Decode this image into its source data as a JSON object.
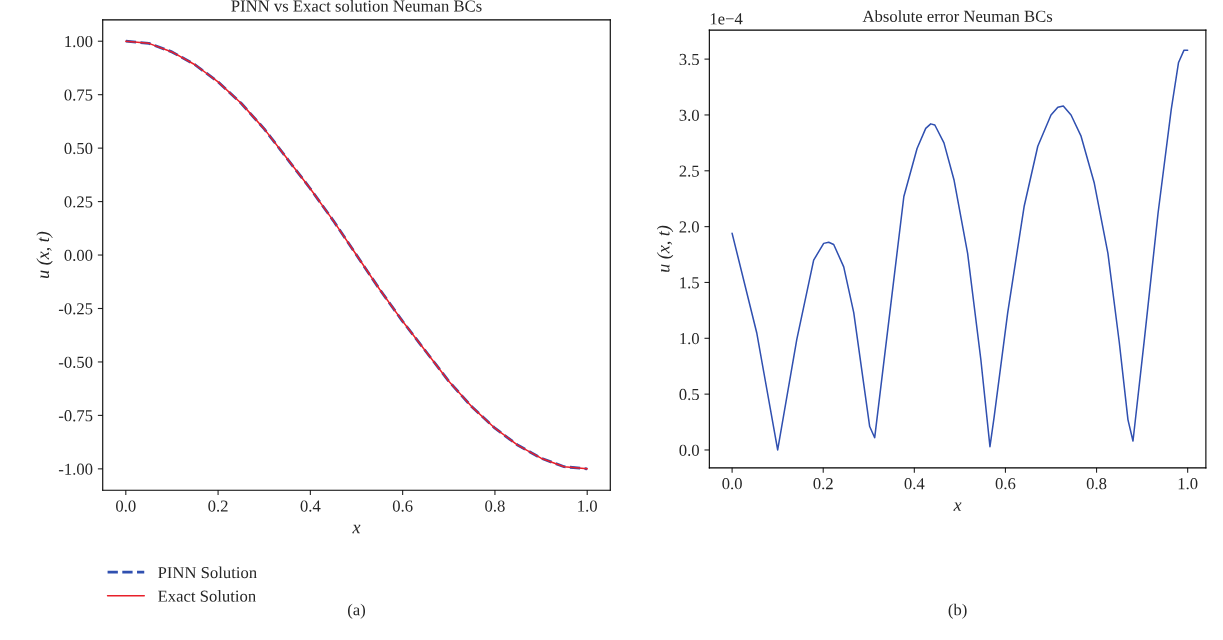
{
  "chart_data": [
    {
      "type": "line",
      "title": "PINN vs Exact solution Neuman BCs",
      "xlabel": "x",
      "ylabel": "u (x, t)",
      "annotations": [
        "(a)"
      ],
      "xlim": [
        -0.05,
        1.05
      ],
      "ylim": [
        -1.1,
        1.1
      ],
      "xticks": [
        {
          "value": 0,
          "label": "0.0"
        },
        {
          "value": 0.2,
          "label": "0.2"
        },
        {
          "value": 0.4,
          "label": "0.4"
        },
        {
          "value": 0.6,
          "label": "0.6"
        },
        {
          "value": 0.8,
          "label": "0.8"
        },
        {
          "value": 1,
          "label": "1.0"
        }
      ],
      "yticks": [
        {
          "value": -1,
          "label": "-1.00"
        },
        {
          "value": -0.75,
          "label": "-0.75"
        },
        {
          "value": -0.5,
          "label": "-0.50"
        },
        {
          "value": -0.25,
          "label": "-0.25"
        },
        {
          "value": 0,
          "label": "0.00"
        },
        {
          "value": 0.25,
          "label": "0.25"
        },
        {
          "value": 0.5,
          "label": "0.50"
        },
        {
          "value": 0.75,
          "label": "0.75"
        },
        {
          "value": 1,
          "label": "1.00"
        }
      ],
      "grid": false,
      "legend": "bottom left",
      "x": [
        0,
        0.05,
        0.1,
        0.15,
        0.2,
        0.25,
        0.3,
        0.35,
        0.4,
        0.45,
        0.5,
        0.55,
        0.6,
        0.65,
        0.7,
        0.75,
        0.8,
        0.85,
        0.9,
        0.95,
        1.0
      ],
      "series": [
        {
          "name": "PINN Solution",
          "color": "#3050b0",
          "line_style": "dashed",
          "values": [
            1.0,
            0.99,
            0.95,
            0.89,
            0.81,
            0.71,
            0.59,
            0.45,
            0.31,
            0.16,
            0.0,
            -0.16,
            -0.31,
            -0.45,
            -0.59,
            -0.71,
            -0.81,
            -0.89,
            -0.95,
            -0.99,
            -1.0
          ]
        },
        {
          "name": "Exact Solution",
          "color": "#e8202a",
          "line_style": "solid",
          "values": [
            1.0,
            0.99,
            0.95,
            0.89,
            0.81,
            0.71,
            0.59,
            0.45,
            0.31,
            0.16,
            0.0,
            -0.16,
            -0.31,
            -0.45,
            -0.59,
            -0.71,
            -0.81,
            -0.89,
            -0.95,
            -0.99,
            -1.0
          ]
        }
      ]
    },
    {
      "type": "line",
      "title": "Absolute error Neuman BCs",
      "xlabel": "x",
      "ylabel": "u (x, t)",
      "annotations": [
        "1e−4",
        "(b)"
      ],
      "xlim": [
        -0.05,
        1.04
      ],
      "ylim": [
        -0.16,
        3.76
      ],
      "xticks": [
        {
          "value": 0,
          "label": "0.0"
        },
        {
          "value": 0.2,
          "label": "0.2"
        },
        {
          "value": 0.4,
          "label": "0.4"
        },
        {
          "value": 0.6,
          "label": "0.6"
        },
        {
          "value": 0.8,
          "label": "0.8"
        },
        {
          "value": 1,
          "label": "1.0"
        }
      ],
      "yticks": [
        {
          "value": 0,
          "label": "0.0"
        },
        {
          "value": 0.5,
          "label": "0.5"
        },
        {
          "value": 1,
          "label": "1.0"
        },
        {
          "value": 1.5,
          "label": "1.5"
        },
        {
          "value": 2,
          "label": "2.0"
        },
        {
          "value": 2.5,
          "label": "2.5"
        },
        {
          "value": 3,
          "label": "3.0"
        },
        {
          "value": 3.5,
          "label": "3.5"
        }
      ],
      "grid": false,
      "legend": false,
      "x": [
        0,
        0.054,
        0.1,
        0.142,
        0.179,
        0.201,
        0.212,
        0.223,
        0.245,
        0.267,
        0.302,
        0.313,
        0.348,
        0.377,
        0.406,
        0.425,
        0.436,
        0.445,
        0.465,
        0.487,
        0.517,
        0.546,
        0.566,
        0.575,
        0.605,
        0.641,
        0.671,
        0.7,
        0.715,
        0.727,
        0.744,
        0.766,
        0.795,
        0.825,
        0.85,
        0.869,
        0.88,
        0.905,
        0.935,
        0.964,
        0.98,
        0.992,
        1.0
      ],
      "series": [
        {
          "color": "#3050b0",
          "line_style": "solid",
          "values": [
            1.94,
            1.05,
            0.0,
            0.99,
            1.7,
            1.85,
            1.86,
            1.84,
            1.64,
            1.23,
            0.21,
            0.11,
            1.29,
            2.27,
            2.7,
            2.88,
            2.92,
            2.91,
            2.75,
            2.42,
            1.76,
            0.81,
            0.03,
            0.29,
            1.23,
            2.18,
            2.72,
            3.0,
            3.07,
            3.08,
            3.0,
            2.81,
            2.39,
            1.76,
            0.96,
            0.27,
            0.08,
            0.99,
            2.12,
            3.05,
            3.47,
            3.58,
            3.58
          ]
        }
      ]
    }
  ]
}
